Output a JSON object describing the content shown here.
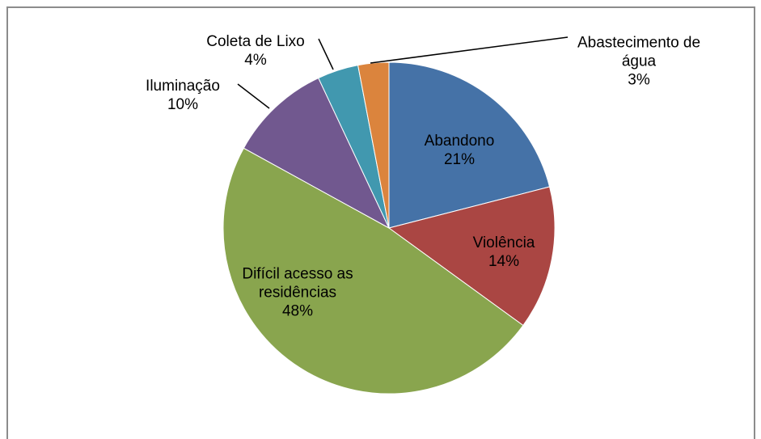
{
  "chart_data": {
    "type": "pie",
    "categories": [
      "Abandono",
      "Violência",
      "Difícil acesso as residências",
      "Iluminação",
      "Coleta de Lixo",
      "Abastecimento de água"
    ],
    "values": [
      21,
      14,
      48,
      10,
      4,
      3
    ],
    "value_labels": [
      "21%",
      "14%",
      "48%",
      "10%",
      "4%",
      "3%"
    ],
    "colors": [
      "#4572a7",
      "#aa4643",
      "#89a54e",
      "#71588f",
      "#4198af",
      "#db843d"
    ]
  }
}
